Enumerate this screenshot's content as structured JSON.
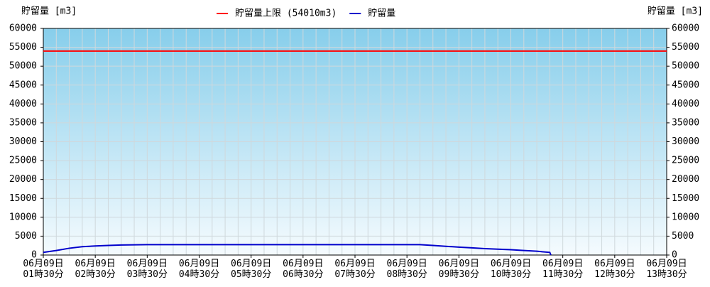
{
  "chart_data": {
    "type": "line",
    "y_label": "貯留量 [m3]",
    "y2_label": "貯留量 [m3]",
    "series": [
      {
        "name": "貯留量上限 (54010m3)",
        "color": "#ff0000",
        "x": [
          1.5,
          13.5
        ],
        "values": [
          54010,
          54010
        ]
      },
      {
        "name": "貯留量",
        "color": "#0000cc",
        "x": [
          1.5,
          1.75,
          2.0,
          2.25,
          2.5,
          2.75,
          3.0,
          3.25,
          3.5,
          8.75,
          9.0,
          9.25,
          9.5,
          9.75,
          10.0,
          10.25,
          10.5,
          10.75,
          11.0,
          11.25,
          11.27
        ],
        "values": [
          700,
          1200,
          1800,
          2200,
          2400,
          2550,
          2650,
          2700,
          2750,
          2750,
          2550,
          2300,
          2100,
          1900,
          1700,
          1550,
          1400,
          1200,
          1000,
          700,
          0
        ]
      }
    ],
    "xlim": [
      1.5,
      13.5
    ],
    "xticks": [
      {
        "value": 1.5,
        "label": "06月09日\n01時30分"
      },
      {
        "value": 2.5,
        "label": "06月09日\n02時30分"
      },
      {
        "value": 3.5,
        "label": "06月09日\n03時30分"
      },
      {
        "value": 4.5,
        "label": "06月09日\n04時30分"
      },
      {
        "value": 5.5,
        "label": "06月09日\n05時30分"
      },
      {
        "value": 6.5,
        "label": "06月09日\n06時30分"
      },
      {
        "value": 7.5,
        "label": "06月09日\n07時30分"
      },
      {
        "value": 8.5,
        "label": "06月09日\n08時30分"
      },
      {
        "value": 9.5,
        "label": "06月09日\n09時30分"
      },
      {
        "value": 10.5,
        "label": "06月09日\n10時30分"
      },
      {
        "value": 11.5,
        "label": "06月09日\n11時30分"
      },
      {
        "value": 12.5,
        "label": "06月09日\n12時30分"
      },
      {
        "value": 13.5,
        "label": "06月09日\n13時30分"
      }
    ],
    "ylim": [
      0,
      60000
    ],
    "yticks": [
      0,
      5000,
      10000,
      15000,
      20000,
      25000,
      30000,
      35000,
      40000,
      45000,
      50000,
      55000,
      60000
    ],
    "y2lim": [
      0,
      60000
    ],
    "y2ticks": [
      0,
      5000,
      10000,
      15000,
      20000,
      25000,
      30000,
      35000,
      40000,
      45000,
      50000,
      55000,
      60000
    ],
    "grid": true,
    "legend": "top"
  }
}
